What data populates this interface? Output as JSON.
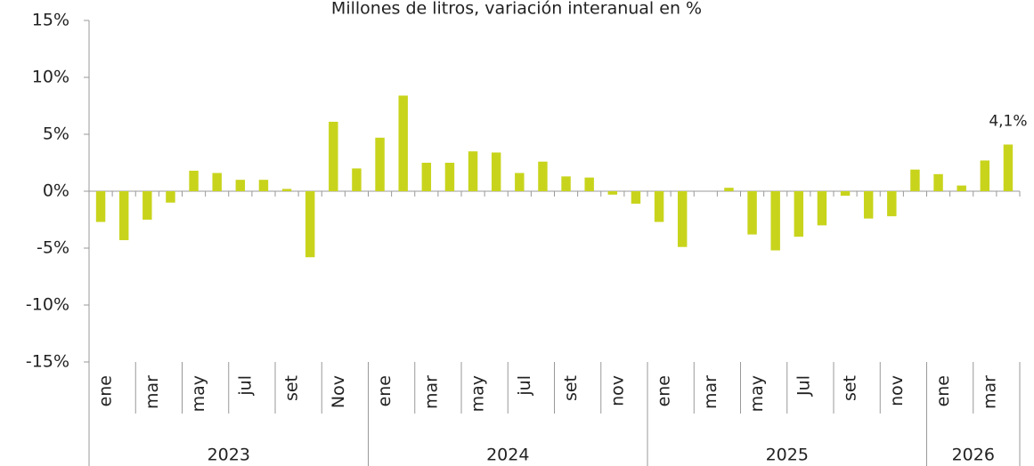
{
  "chart_data": {
    "type": "bar",
    "title": "Millones de litros, variación interanual en %",
    "categories": [
      "ene",
      null,
      "mar",
      null,
      "may",
      null,
      "jul",
      null,
      "set",
      null,
      "Nov",
      null,
      "ene",
      null,
      "mar",
      null,
      "may",
      null,
      "jul",
      null,
      "set",
      null,
      "nov",
      null,
      "ene",
      null,
      "mar",
      null,
      "may",
      null,
      "Jul",
      null,
      "set",
      null,
      "nov",
      null,
      "ene",
      null,
      "mar",
      null
    ],
    "groups": [
      "2023",
      "2024",
      "2025",
      "2026"
    ],
    "values": [
      -2.7,
      -4.3,
      -2.5,
      -1.0,
      1.8,
      1.6,
      1.0,
      1.0,
      0.2,
      -5.8,
      6.1,
      2.0,
      4.7,
      8.4,
      2.5,
      2.5,
      3.5,
      3.4,
      1.6,
      2.6,
      1.3,
      1.2,
      -0.3,
      -1.1,
      -2.7,
      -4.9,
      0.0,
      0.3,
      -3.8,
      -5.2,
      -4.0,
      -3.0,
      -0.4,
      -2.4,
      -2.2,
      1.9,
      1.5,
      0.5,
      2.7,
      4.1
    ],
    "value_labels": [
      null,
      null,
      null,
      null,
      null,
      null,
      null,
      null,
      null,
      null,
      null,
      null,
      null,
      null,
      null,
      null,
      null,
      null,
      null,
      null,
      null,
      null,
      null,
      null,
      null,
      null,
      null,
      null,
      null,
      null,
      null,
      null,
      null,
      null,
      null,
      null,
      null,
      null,
      null,
      "4,1%"
    ],
    "color": "#c8d41c",
    "ylim": [
      -15,
      15
    ],
    "yticks": [
      {
        "value": -15,
        "label": "-15%"
      },
      {
        "value": -10,
        "label": "-10%"
      },
      {
        "value": -5,
        "label": "-5%"
      },
      {
        "value": 0,
        "label": "0%"
      },
      {
        "value": 5,
        "label": "5%"
      },
      {
        "value": 10,
        "label": "10%"
      },
      {
        "value": 15,
        "label": "15%"
      }
    ],
    "grid": false
  }
}
